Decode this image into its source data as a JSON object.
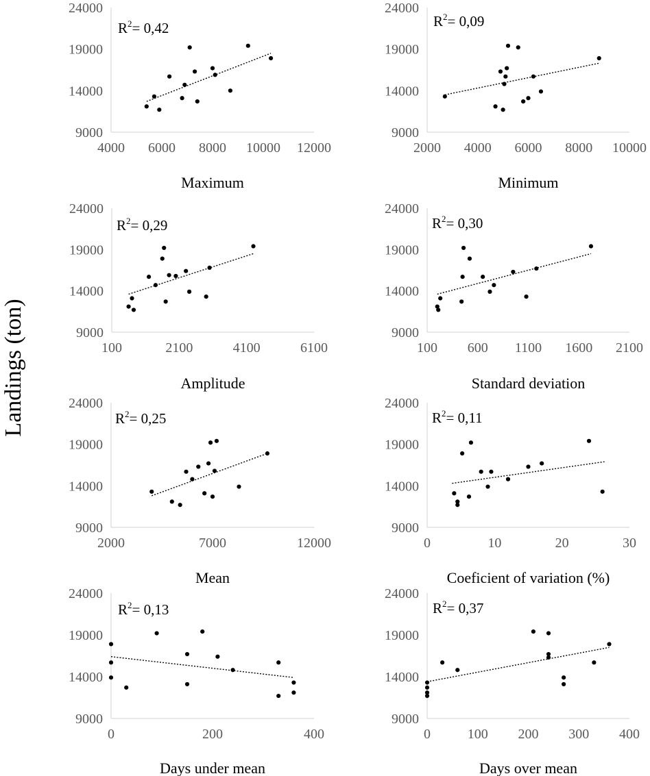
{
  "figure": {
    "y_axis_label": "Landings (ton)"
  },
  "chart_data": [
    {
      "type": "scatter",
      "title": "",
      "xlabel": "Maximum",
      "r2_prefix": "R",
      "r2_exp": "2",
      "r2_value": "= 0,42",
      "xlim": [
        4000,
        12000
      ],
      "ylim": [
        9000,
        24000
      ],
      "xticks": [
        "4000",
        "6000",
        "8000",
        "10000",
        "12000"
      ],
      "yticks": [
        "9000",
        "14000",
        "19000",
        "24000"
      ],
      "x": [
        5400,
        5700,
        5900,
        6300,
        6800,
        6900,
        7100,
        7300,
        7400,
        8000,
        8100,
        8700,
        9400,
        10300
      ],
      "y": [
        12100,
        13300,
        11700,
        15700,
        13100,
        14700,
        19200,
        16300,
        12700,
        16700,
        15900,
        14000,
        19400,
        17900
      ],
      "trend": {
        "x": [
          5400,
          10300
        ],
        "y": [
          12700,
          18500
        ]
      }
    },
    {
      "type": "scatter",
      "title": "",
      "xlabel": "Minimum",
      "r2_prefix": "R",
      "r2_exp": "2",
      "r2_value": "= 0,09",
      "xlim": [
        2000,
        10000
      ],
      "ylim": [
        9000,
        24000
      ],
      "xticks": [
        "2000",
        "4000",
        "6000",
        "8000",
        "10000"
      ],
      "yticks": [
        "9000",
        "14000",
        "19000",
        "24000"
      ],
      "x": [
        2700,
        4700,
        4900,
        5000,
        5050,
        5100,
        5150,
        5200,
        5600,
        5800,
        6000,
        6200,
        6500,
        8800
      ],
      "y": [
        13300,
        12100,
        16300,
        11700,
        14800,
        15700,
        16700,
        19400,
        19200,
        12700,
        13100,
        15700,
        13900,
        17900
      ],
      "trend": {
        "x": [
          2700,
          8800
        ],
        "y": [
          13500,
          17300
        ]
      }
    },
    {
      "type": "scatter",
      "title": "",
      "xlabel": "Amplitude",
      "r2_prefix": "R",
      "r2_exp": "2",
      "r2_value": "= 0,29",
      "xlim": [
        100,
        6100
      ],
      "ylim": [
        9000,
        24000
      ],
      "xticks": [
        "100",
        "2100",
        "4100",
        "6100"
      ],
      "yticks": [
        "9000",
        "14000",
        "19000",
        "24000"
      ],
      "x": [
        600,
        700,
        750,
        1200,
        1400,
        1600,
        1650,
        1700,
        1800,
        2000,
        2300,
        2400,
        2900,
        3000,
        4300
      ],
      "y": [
        12100,
        13100,
        11700,
        15700,
        14700,
        17900,
        19200,
        12700,
        15900,
        15800,
        16400,
        13900,
        13300,
        16800,
        19400
      ],
      "trend": {
        "x": [
          600,
          4300
        ],
        "y": [
          13600,
          18500
        ]
      }
    },
    {
      "type": "scatter",
      "title": "",
      "xlabel": "Standard deviation",
      "r2_prefix": "R",
      "r2_exp": "2",
      "r2_value": "= 0,30",
      "xlim": [
        100,
        2100
      ],
      "ylim": [
        9000,
        24000
      ],
      "xticks": [
        "100",
        "600",
        "1100",
        "1600",
        "2100"
      ],
      "yticks": [
        "9000",
        "14000",
        "19000",
        "24000"
      ],
      "x": [
        200,
        210,
        230,
        440,
        450,
        460,
        520,
        650,
        720,
        760,
        950,
        1080,
        1180,
        1720
      ],
      "y": [
        12100,
        11700,
        13100,
        12700,
        15700,
        19200,
        17900,
        15700,
        13900,
        14700,
        16300,
        13300,
        16700,
        19400
      ],
      "trend": {
        "x": [
          200,
          1720
        ],
        "y": [
          13600,
          18500
        ]
      }
    },
    {
      "type": "scatter",
      "title": "",
      "xlabel": "Mean",
      "r2_prefix": "R",
      "r2_exp": "2",
      "r2_value": "= 0,25",
      "xlim": [
        2000,
        12000
      ],
      "ylim": [
        9000,
        24000
      ],
      "xticks": [
        "2000",
        "7000",
        "12000"
      ],
      "yticks": [
        "9000",
        "14000",
        "19000",
        "24000"
      ],
      "x": [
        4000,
        5000,
        5400,
        5700,
        6000,
        6300,
        6600,
        6800,
        6900,
        7000,
        7100,
        7200,
        8300,
        9700
      ],
      "y": [
        13300,
        12100,
        11700,
        15700,
        14800,
        16300,
        13100,
        16700,
        19200,
        12700,
        15800,
        19400,
        13900,
        17900
      ],
      "trend": {
        "x": [
          4000,
          9700
        ],
        "y": [
          12800,
          17900
        ]
      }
    },
    {
      "type": "scatter",
      "title": "",
      "xlabel": "Coeficient of variation (%)",
      "r2_prefix": "R",
      "r2_exp": "2",
      "r2_value": "= 0,11",
      "xlim": [
        0,
        30
      ],
      "ylim": [
        9000,
        24000
      ],
      "xticks": [
        "0",
        "10",
        "20",
        "30"
      ],
      "yticks": [
        "9000",
        "14000",
        "19000",
        "24000"
      ],
      "x": [
        4,
        4.5,
        4.5,
        5.2,
        6.2,
        6.5,
        8,
        9,
        9.5,
        12,
        15,
        17,
        24,
        26
      ],
      "y": [
        13100,
        12100,
        11700,
        17900,
        12700,
        19200,
        15700,
        13900,
        15700,
        14800,
        16300,
        16700,
        19400,
        13300
      ],
      "trend": {
        "x": [
          3.7,
          26.3
        ],
        "y": [
          14300,
          16900
        ]
      }
    },
    {
      "type": "scatter",
      "title": "",
      "xlabel": "Days under mean",
      "r2_prefix": "R",
      "r2_exp": "2",
      "r2_value": "= 0,13",
      "xlim": [
        0,
        400
      ],
      "ylim": [
        9000,
        24000
      ],
      "xticks": [
        "0",
        "200",
        "400"
      ],
      "yticks": [
        "9000",
        "14000",
        "19000",
        "24000"
      ],
      "x": [
        0,
        0,
        0,
        30,
        90,
        150,
        150,
        180,
        210,
        240,
        330,
        330,
        360,
        360
      ],
      "y": [
        17900,
        15700,
        13900,
        12700,
        19200,
        16700,
        13100,
        19400,
        16400,
        14800,
        15700,
        11700,
        13300,
        12100
      ],
      "trend": {
        "x": [
          0,
          360
        ],
        "y": [
          16400,
          13900
        ]
      }
    },
    {
      "type": "scatter",
      "title": "",
      "xlabel": "Days over mean",
      "r2_prefix": "R",
      "r2_exp": "2",
      "r2_value": "= 0,37",
      "xlim": [
        0,
        400
      ],
      "ylim": [
        9000,
        24000
      ],
      "xticks": [
        "0",
        "100",
        "200",
        "300",
        "400"
      ],
      "yticks": [
        "9000",
        "14000",
        "19000",
        "24000"
      ],
      "x": [
        0,
        0,
        0,
        0,
        30,
        60,
        210,
        240,
        240,
        240,
        270,
        270,
        330,
        360
      ],
      "y": [
        13300,
        12700,
        12100,
        11700,
        15700,
        14800,
        19400,
        19200,
        16700,
        16300,
        13900,
        13100,
        15700,
        17900
      ],
      "trend": {
        "x": [
          0,
          360
        ],
        "y": [
          13400,
          17500
        ]
      }
    }
  ]
}
